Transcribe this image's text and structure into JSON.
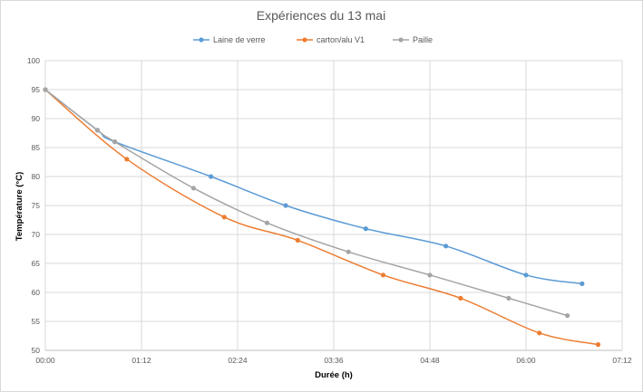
{
  "chart_data": {
    "type": "line",
    "title": "Expériences du 13 mai",
    "xlabel": "Durée (h)",
    "ylabel": "Température (°C)",
    "xlim": [
      0,
      432
    ],
    "ylim": [
      50,
      100
    ],
    "x_ticks": [
      0,
      72,
      144,
      216,
      288,
      360,
      432
    ],
    "x_tick_labels": [
      "00:00",
      "01:12",
      "02:24",
      "03:36",
      "04:48",
      "06:00",
      "07:12"
    ],
    "y_ticks": [
      50,
      55,
      60,
      65,
      70,
      75,
      80,
      85,
      90,
      95,
      100
    ],
    "y_tick_labels": [
      "50",
      "55",
      "60",
      "65",
      "70",
      "75",
      "80",
      "85",
      "90",
      "95",
      "100"
    ],
    "grid": true,
    "legend_position": "top",
    "series": [
      {
        "name": "Laine de verre",
        "color": "#5b9bd5",
        "x": [
          0,
          39,
          52,
          124,
          180,
          240,
          300,
          360,
          402
        ],
        "y": [
          95,
          88,
          86,
          80,
          75,
          71,
          68,
          63,
          61.5
        ]
      },
      {
        "name": "carton/alu V1",
        "color": "#ed7d31",
        "x": [
          0,
          61,
          134,
          189,
          253,
          311,
          370,
          414
        ],
        "y": [
          95,
          83,
          73,
          69,
          63,
          59,
          53,
          51
        ]
      },
      {
        "name": "Paille",
        "color": "#a5a5a5",
        "x": [
          0,
          39,
          52,
          111,
          166,
          227,
          288,
          347,
          391
        ],
        "y": [
          95,
          88,
          86,
          78,
          72,
          67,
          63,
          59,
          56
        ]
      }
    ]
  }
}
